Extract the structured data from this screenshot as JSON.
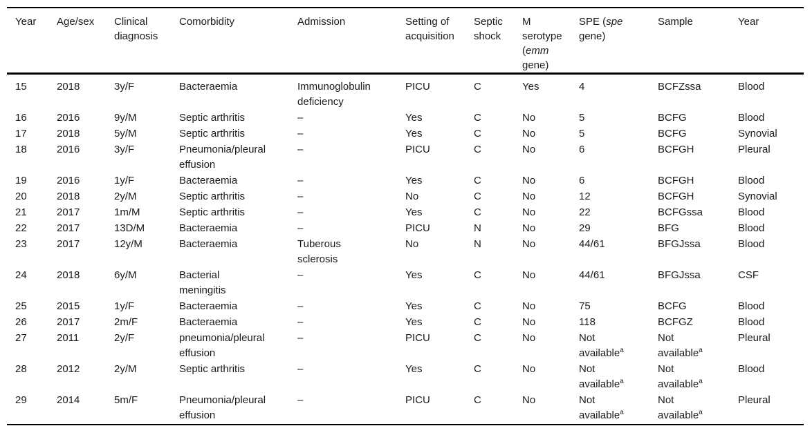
{
  "colors": {
    "background": "#ffffff",
    "text": "#1a1a1a",
    "rule": "#000000"
  },
  "table": {
    "header": {
      "col1": "Year",
      "col2": "Age/sex",
      "col3": "Clinical\ndiagnosis",
      "col4": "Comorbidity",
      "col5": "Admission",
      "col6": "Setting of\nacquisition",
      "col7": "Septic\nshock",
      "col8": {
        "line1": "M",
        "line2": "serotype",
        "line3_pre": "(",
        "line3_italic": "emm",
        "line4": "gene)"
      },
      "col9": {
        "line1_pre": "SPE (",
        "line1_italic": "spe",
        "line2": "gene)"
      },
      "col10": "Sample",
      "col11": "Year"
    },
    "rows": [
      [
        "15",
        "2018",
        "3y/F",
        "Bacteraemia",
        "Immunoglobulin\ndeficiency",
        "PICU",
        "C",
        "Yes",
        "4",
        "BCFZssa",
        "Blood"
      ],
      [
        "16",
        "2016",
        "9y/M",
        "Septic arthritis",
        "–",
        "Yes",
        "C",
        "No",
        "5",
        "BCFG",
        "Blood"
      ],
      [
        "17",
        "2018",
        "5y/M",
        "Septic arthritis",
        "–",
        "Yes",
        "C",
        "No",
        "5",
        "BCFG",
        "Synovial"
      ],
      [
        "18",
        "2016",
        "3y/F",
        "Pneumonia/pleural\neffusion",
        "–",
        "PICU",
        "C",
        "No",
        "6",
        "BCFGH",
        "Pleural"
      ],
      [
        "19",
        "2016",
        "1y/F",
        "Bacteraemia",
        "–",
        "Yes",
        "C",
        "No",
        "6",
        "BCFGH",
        "Blood"
      ],
      [
        "20",
        "2018",
        "2y/M",
        "Septic arthritis",
        "–",
        "No",
        "C",
        "No",
        "12",
        "BCFGH",
        "Synovial"
      ],
      [
        "21",
        "2017",
        "1m/M",
        "Septic arthritis",
        "–",
        "Yes",
        "C",
        "No",
        "22",
        "BCFGssa",
        "Blood"
      ],
      [
        "22",
        "2017",
        "13D/M",
        "Bacteraemia",
        "–",
        "PICU",
        "N",
        "No",
        "29",
        "BFG",
        "Blood"
      ],
      [
        "23",
        "2017",
        "12y/M",
        "Bacteraemia",
        "Tuberous\nsclerosis",
        "No",
        "N",
        "No",
        "44/61",
        "BFGJssa",
        "Blood"
      ],
      [
        "24",
        "2018",
        "6y/M",
        "Bacterial\nmeningitis",
        "–",
        "Yes",
        "C",
        "No",
        "44/61",
        "BFGJssa",
        "CSF"
      ],
      [
        "25",
        "2015",
        "1y/F",
        "Bacteraemia",
        "–",
        "Yes",
        "C",
        "No",
        "75",
        "BCFG",
        "Blood"
      ],
      [
        "26",
        "2017",
        "2m/F",
        "Bacteraemia",
        "–",
        "Yes",
        "C",
        "No",
        "118",
        "BCFGZ",
        "Blood"
      ],
      [
        "27",
        "2011",
        "2y/F",
        "pneumonia/pleural\neffusion",
        "–",
        "PICU",
        "C",
        "No",
        "Not\navailable^a",
        "Not\navailable^a",
        "Pleural"
      ],
      [
        "28",
        "2012",
        "2y/M",
        "Septic arthritis",
        "–",
        "Yes",
        "C",
        "No",
        "Not\navailable^a",
        "Not\navailable^a",
        "Blood"
      ],
      [
        "29",
        "2014",
        "5m/F",
        "Pneumonia/pleural\neffusion",
        "–",
        "PICU",
        "C",
        "No",
        "Not\navailable^a",
        "Not\navailable^a",
        "Pleural"
      ]
    ]
  }
}
